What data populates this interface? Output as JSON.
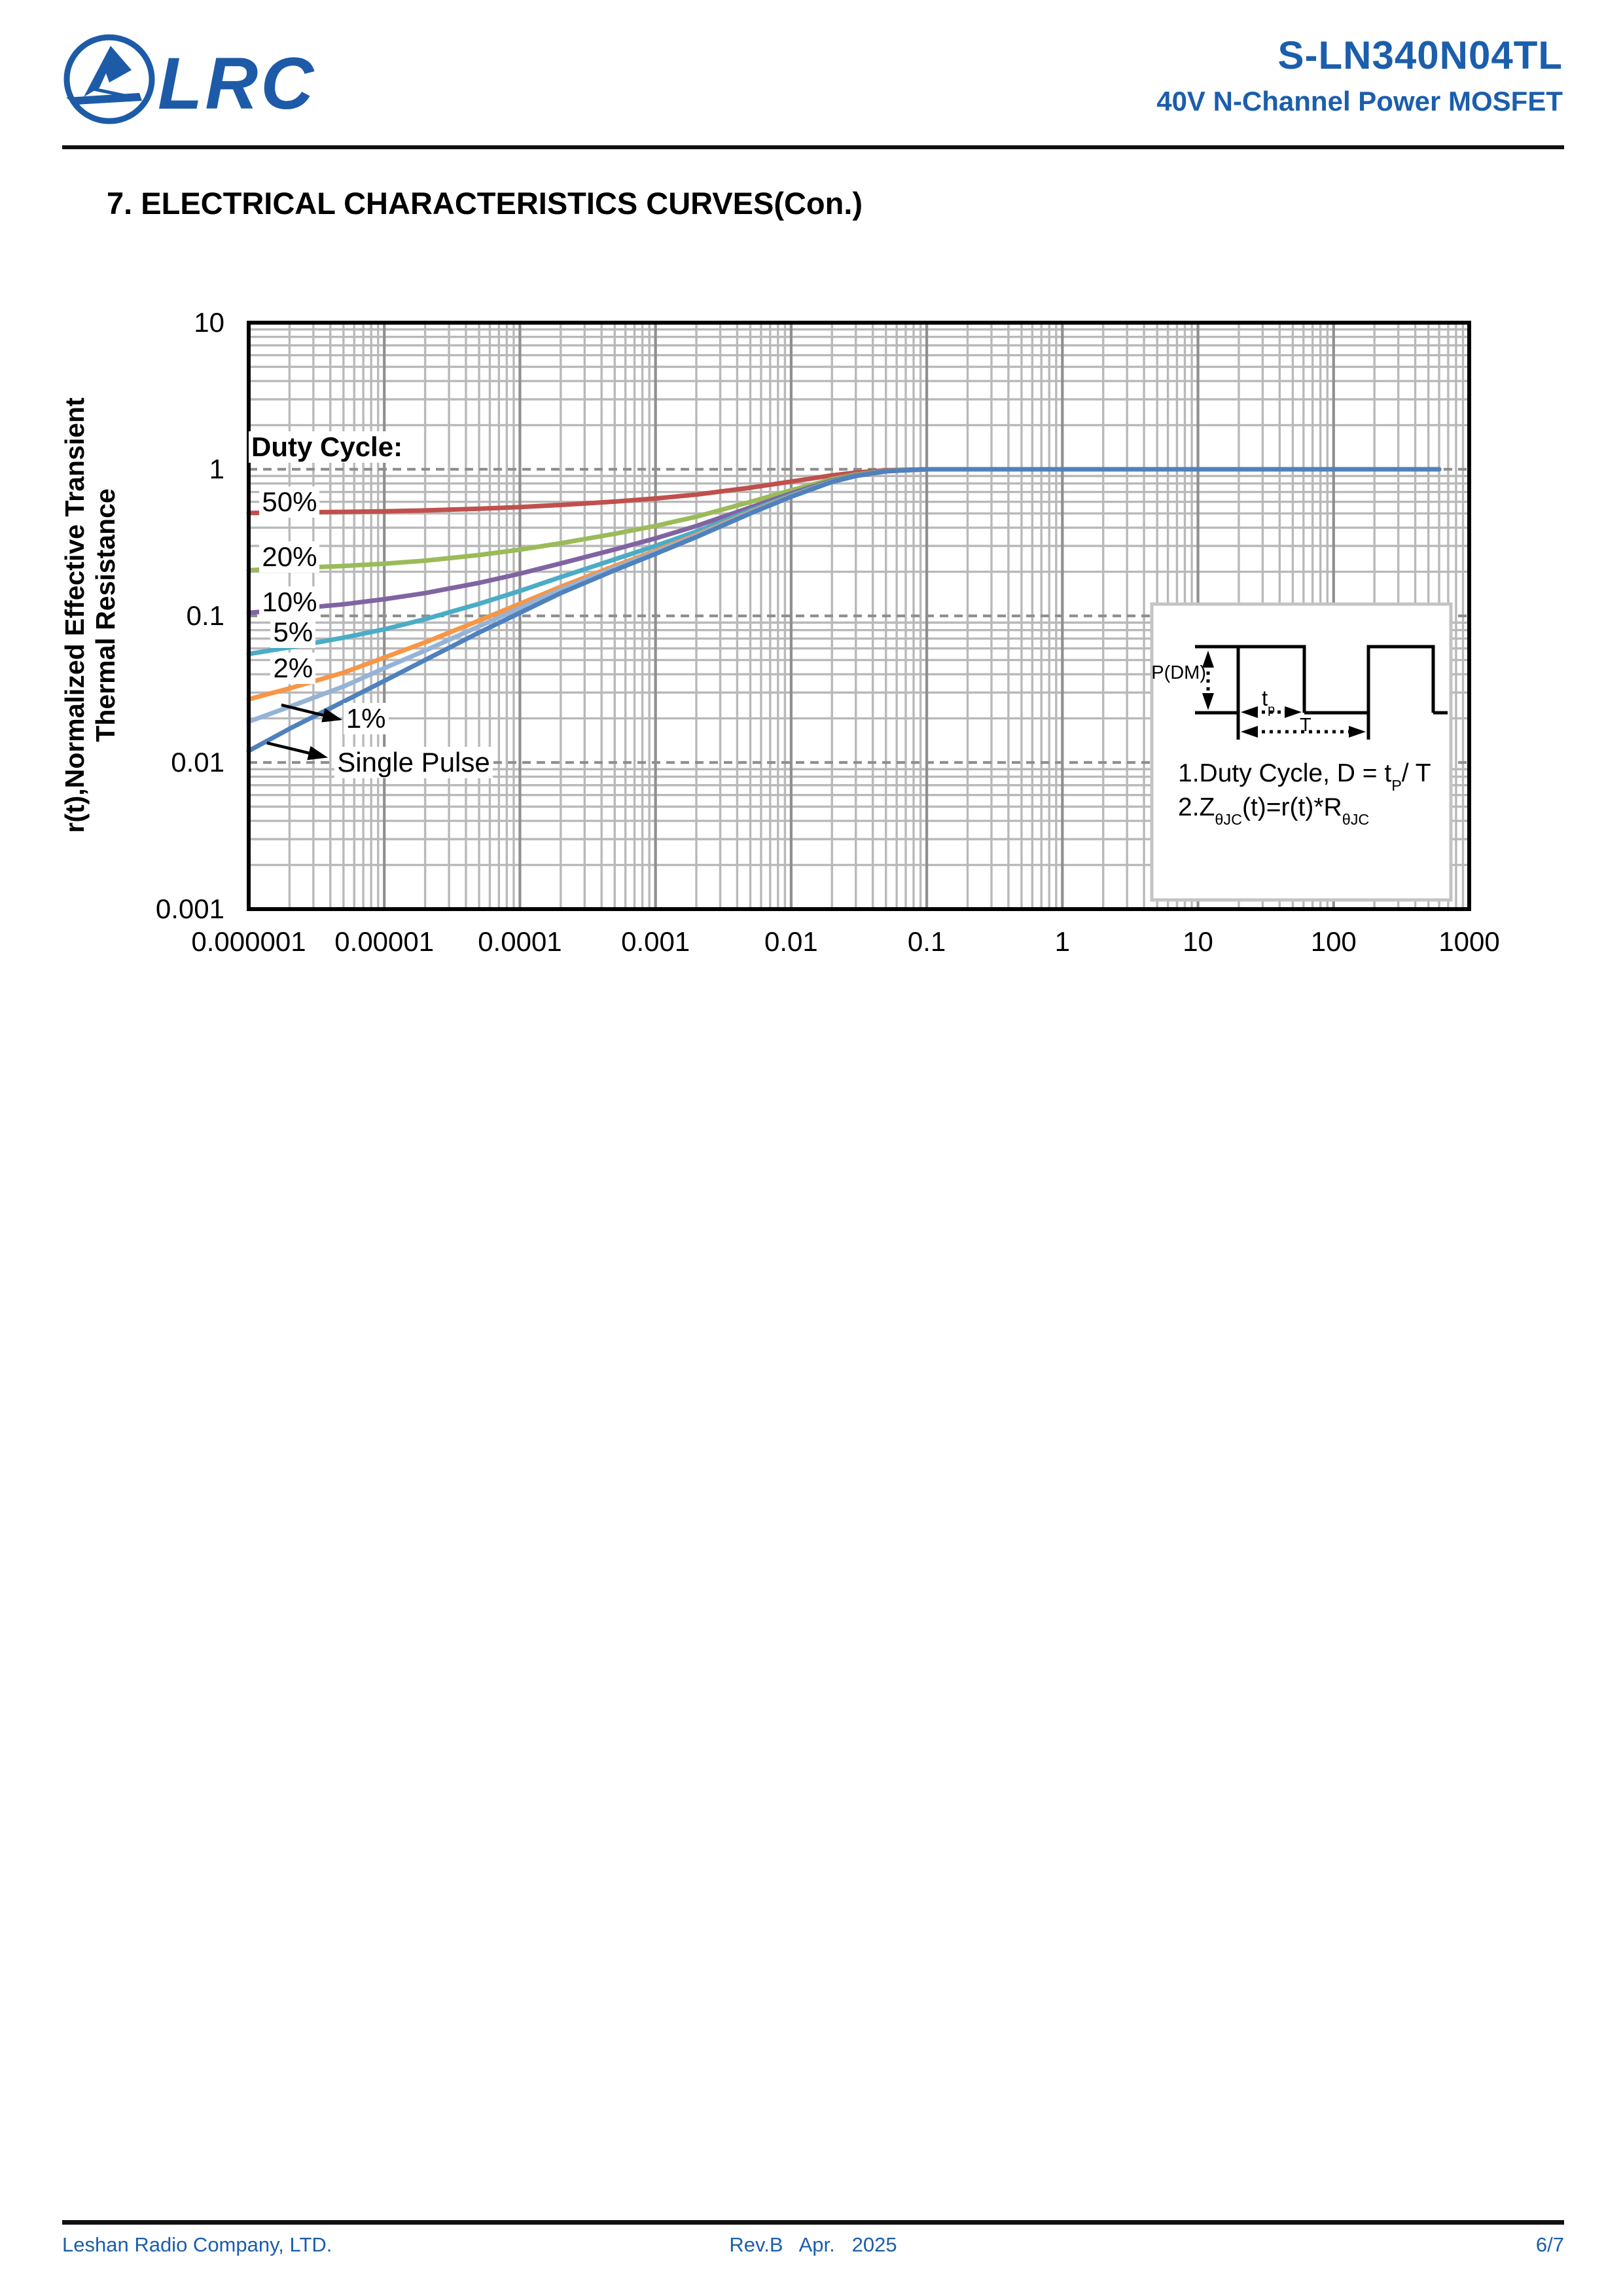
{
  "header": {
    "brand": "LRC",
    "product": "S-LN340N04TL",
    "subtitle": "40V N-Channel Power MOSFET"
  },
  "section_title": "7. ELECTRICAL CHARACTERISTICS CURVES(Con.)",
  "chart_data": {
    "type": "line",
    "x_scale": "log",
    "y_scale": "log",
    "x_range": [
      1e-06,
      1000
    ],
    "y_range": [
      0.001,
      10
    ],
    "grid": "on",
    "x_ticks": [
      "0.000001",
      "0.00001",
      "0.0001",
      "0.001",
      "0.01",
      "0.1",
      "1",
      "10",
      "100",
      "1000"
    ],
    "y_ticks": [
      "10",
      "1",
      "0.1",
      "0.01",
      "0.001"
    ],
    "ylabel_line1": "r(t),Normalized Effective Transient",
    "ylabel_line2": "Thermal Resistance",
    "legend_title": "Duty Cycle:",
    "legend_title_at": {
      "t": 1e-06,
      "r": 1.42
    },
    "t": [
      1e-06,
      2e-06,
      5e-06,
      1e-05,
      2e-05,
      5e-05,
      0.0001,
      0.0002,
      0.0005,
      0.001,
      0.002,
      0.005,
      0.01,
      0.02,
      0.03,
      0.05,
      0.1,
      1,
      10,
      100,
      600
    ],
    "series": [
      {
        "name": "50%",
        "color": "#C0504D",
        "r": [
          0.503,
          0.507,
          0.512,
          0.517,
          0.524,
          0.538,
          0.552,
          0.571,
          0.602,
          0.632,
          0.672,
          0.749,
          0.824,
          0.909,
          0.95,
          0.985,
          1,
          1,
          1,
          1,
          1
        ],
        "label_at": {
          "t": 1.2e-06,
          "r": 0.6
        }
      },
      {
        "name": "20%",
        "color": "#9BBB59",
        "r": [
          0.205,
          0.211,
          0.219,
          0.227,
          0.238,
          0.26,
          0.283,
          0.313,
          0.363,
          0.411,
          0.475,
          0.599,
          0.719,
          0.856,
          0.92,
          0.976,
          1,
          1,
          1,
          1,
          1
        ],
        "label_at": {
          "t": 1.2e-06,
          "r": 0.252
        }
      },
      {
        "name": "10%",
        "color": "#8064A2",
        "r": [
          0.105,
          0.111,
          0.12,
          0.13,
          0.143,
          0.168,
          0.194,
          0.228,
          0.284,
          0.338,
          0.41,
          0.549,
          0.684,
          0.838,
          0.91,
          0.973,
          1,
          1,
          1,
          1,
          1
        ],
        "label_at": {
          "t": 1.2e-06,
          "r": 0.124
        }
      },
      {
        "name": "5%",
        "color": "#4BACC6",
        "r": [
          0.055,
          0.061,
          0.071,
          0.081,
          0.095,
          0.121,
          0.148,
          0.184,
          0.243,
          0.3,
          0.376,
          0.524,
          0.667,
          0.829,
          0.905,
          0.972,
          1,
          1,
          1,
          1,
          1
        ],
        "label_at": {
          "t": 1.45e-06,
          "r": 0.077
        }
      },
      {
        "name": "2%",
        "color": "#F79646",
        "r": [
          0.027,
          0.032,
          0.041,
          0.052,
          0.066,
          0.093,
          0.121,
          0.158,
          0.219,
          0.278,
          0.357,
          0.51,
          0.657,
          0.824,
          0.902,
          0.971,
          1,
          1,
          1,
          1,
          1
        ],
        "label_at": {
          "t": 1.45e-06,
          "r": 0.044
        }
      },
      {
        "name": "1%",
        "color": "#95B3D7",
        "r": [
          0.019,
          0.024,
          0.033,
          0.044,
          0.058,
          0.085,
          0.113,
          0.151,
          0.212,
          0.272,
          0.351,
          0.505,
          0.653,
          0.822,
          0.901,
          0.97,
          1,
          1,
          1,
          1,
          1
        ],
        "label_at": {
          "t": 5e-06,
          "r": 0.0199
        },
        "arrow": {
          "from": {
            "t": 1.74e-06,
            "r": 0.0247
          },
          "to": {
            "t": 4.9e-06,
            "r": 0.0195
          }
        }
      },
      {
        "name": "Single Pulse",
        "color": "#4F81BD",
        "r": [
          0.012,
          0.017,
          0.026,
          0.036,
          0.05,
          0.077,
          0.105,
          0.143,
          0.205,
          0.265,
          0.345,
          0.5,
          0.65,
          0.82,
          0.9,
          0.97,
          1,
          1,
          1,
          1,
          1
        ],
        "label_at": {
          "t": 4.3e-06,
          "r": 0.01
        },
        "arrow": {
          "from": {
            "t": 1.36e-06,
            "r": 0.0136
          },
          "to": {
            "t": 3.84e-06,
            "r": 0.0108
          }
        }
      }
    ],
    "inset": {
      "p_label": "P(DM)",
      "tp_main": "t",
      "tp_sub": "p",
      "t_label": "T",
      "note1_a": "1.Duty Cycle, D = t",
      "note1_sub": "P",
      "note1_b": "/ T",
      "note2_a": "2.Z",
      "note2_sub1": "θJC",
      "note2_b": "(t)=r(t)*R",
      "note2_sub2": "θJC"
    }
  },
  "footer": {
    "company": "Leshan Radio Company, LTD.",
    "rev": "Rev.B   Apr.   2025",
    "page": "6/7"
  }
}
